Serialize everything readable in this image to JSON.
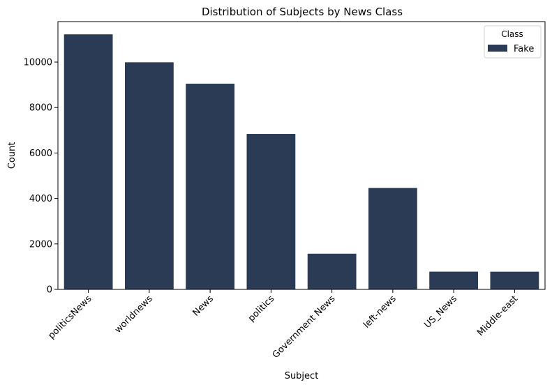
{
  "chart_data": {
    "type": "bar",
    "title": "Distribution of Subjects by News Class",
    "xlabel": "Subject",
    "ylabel": "Count",
    "categories": [
      "politicsNews",
      "worldnews",
      "News",
      "politics",
      "Government News",
      "left-news",
      "US_News",
      "Middle-east"
    ],
    "series": [
      {
        "name": "Fake",
        "values": [
          11220,
          9990,
          9050,
          6840,
          1570,
          4460,
          780,
          778
        ]
      }
    ],
    "ylim": [
      0,
      11780
    ],
    "yticks": [
      0,
      2000,
      4000,
      6000,
      8000,
      10000
    ],
    "legend": {
      "title": "Class",
      "position": "top-right"
    },
    "grid": false,
    "colors": {
      "bar": "#2b3a55"
    }
  }
}
